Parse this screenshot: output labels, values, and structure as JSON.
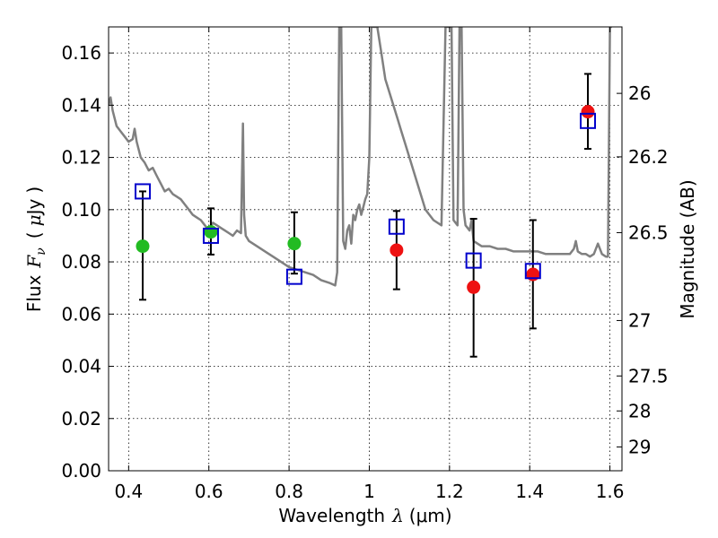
{
  "chart_data": {
    "type": "scatter",
    "xlabel_prefix": "Wavelength",
    "xlabel_symbol": "λ",
    "xlabel_unit": "(μm)",
    "ylabel_prefix": "Flux",
    "ylabel_symbol": "F",
    "ylabel_subscript": "ν",
    "ylabel_unit_open": "(",
    "ylabel_unit_mu": "μ",
    "ylabel_unit_rest": "Jy",
    "ylabel_unit_close": ")",
    "y2label": "Magnitude (AB)",
    "xlim": [
      0.35,
      1.63
    ],
    "ylim": [
      0.0,
      0.17
    ],
    "grid": true,
    "x_ticks": [
      {
        "value": 0.4,
        "label": "0.4"
      },
      {
        "value": 0.6,
        "label": "0.6"
      },
      {
        "value": 0.8,
        "label": "0.8"
      },
      {
        "value": 1.0,
        "label": "1"
      },
      {
        "value": 1.2,
        "label": "1.2"
      },
      {
        "value": 1.4,
        "label": "1.4"
      },
      {
        "value": 1.6,
        "label": "1.6"
      }
    ],
    "y_ticks": [
      {
        "value": 0.0,
        "label": "0.00"
      },
      {
        "value": 0.02,
        "label": "0.02"
      },
      {
        "value": 0.04,
        "label": "0.04"
      },
      {
        "value": 0.06,
        "label": "0.06"
      },
      {
        "value": 0.08,
        "label": "0.08"
      },
      {
        "value": 0.1,
        "label": "0.10"
      },
      {
        "value": 0.12,
        "label": "0.12"
      },
      {
        "value": 0.14,
        "label": "0.14"
      },
      {
        "value": 0.16,
        "label": "0.16"
      }
    ],
    "y2_ticks": [
      {
        "magnitude": 26,
        "label": "26"
      },
      {
        "magnitude": 26.2,
        "label": "26.2"
      },
      {
        "magnitude": 26.5,
        "label": "26.5"
      },
      {
        "magnitude": 27,
        "label": "27"
      },
      {
        "magnitude": 27.5,
        "label": "27.5"
      },
      {
        "magnitude": 28,
        "label": "28"
      },
      {
        "magnitude": 29,
        "label": "29"
      }
    ],
    "colors": {
      "spectrum": "#808080",
      "green_points": "#22bb22",
      "red_points": "#ee1111",
      "model_squares": "#0000cc",
      "error_bars": "#000000"
    },
    "spectrum": {
      "x": [
        0.35,
        0.355,
        0.36,
        0.37,
        0.38,
        0.39,
        0.4,
        0.41,
        0.415,
        0.42,
        0.43,
        0.44,
        0.45,
        0.46,
        0.47,
        0.48,
        0.49,
        0.5,
        0.51,
        0.52,
        0.53,
        0.54,
        0.55,
        0.56,
        0.57,
        0.58,
        0.59,
        0.6,
        0.61,
        0.62,
        0.63,
        0.64,
        0.65,
        0.66,
        0.67,
        0.68,
        0.685,
        0.688,
        0.692,
        0.7,
        0.72,
        0.74,
        0.76,
        0.78,
        0.8,
        0.82,
        0.84,
        0.86,
        0.88,
        0.9,
        0.915,
        0.92,
        0.925,
        0.928,
        0.93,
        0.935,
        0.94,
        0.945,
        0.95,
        0.955,
        0.96,
        0.965,
        0.97,
        0.975,
        0.98,
        0.985,
        0.99,
        0.995,
        1.0,
        1.005,
        1.01,
        1.02,
        1.03,
        1.04,
        1.05,
        1.06,
        1.07,
        1.08,
        1.09,
        1.1,
        1.12,
        1.14,
        1.16,
        1.18,
        1.19,
        1.195,
        1.2,
        1.205,
        1.21,
        1.22,
        1.225,
        1.228,
        1.23,
        1.235,
        1.24,
        1.245,
        1.25,
        1.255,
        1.26,
        1.27,
        1.28,
        1.3,
        1.32,
        1.34,
        1.36,
        1.38,
        1.4,
        1.42,
        1.44,
        1.46,
        1.48,
        1.5,
        1.51,
        1.515,
        1.52,
        1.53,
        1.54,
        1.55,
        1.56,
        1.57,
        1.58,
        1.59,
        1.595,
        1.6,
        1.605
      ],
      "y": [
        0.14,
        0.143,
        0.138,
        0.132,
        0.13,
        0.128,
        0.126,
        0.127,
        0.131,
        0.126,
        0.12,
        0.118,
        0.115,
        0.116,
        0.113,
        0.11,
        0.107,
        0.108,
        0.106,
        0.105,
        0.104,
        0.102,
        0.1,
        0.098,
        0.097,
        0.096,
        0.094,
        0.092,
        0.095,
        0.094,
        0.093,
        0.092,
        0.091,
        0.09,
        0.092,
        0.091,
        0.133,
        0.098,
        0.09,
        0.088,
        0.086,
        0.084,
        0.082,
        0.08,
        0.078,
        0.077,
        0.076,
        0.075,
        0.073,
        0.072,
        0.071,
        0.076,
        0.17,
        0.17,
        0.17,
        0.088,
        0.085,
        0.092,
        0.094,
        0.087,
        0.098,
        0.096,
        0.1,
        0.102,
        0.098,
        0.101,
        0.104,
        0.106,
        0.12,
        0.17,
        0.17,
        0.17,
        0.16,
        0.15,
        0.145,
        0.14,
        0.135,
        0.13,
        0.125,
        0.12,
        0.11,
        0.1,
        0.096,
        0.094,
        0.17,
        0.17,
        0.17,
        0.17,
        0.096,
        0.094,
        0.17,
        0.17,
        0.17,
        0.1,
        0.094,
        0.093,
        0.092,
        0.096,
        0.088,
        0.087,
        0.086,
        0.086,
        0.085,
        0.085,
        0.084,
        0.084,
        0.084,
        0.084,
        0.083,
        0.083,
        0.083,
        0.083,
        0.085,
        0.088,
        0.084,
        0.083,
        0.083,
        0.082,
        0.083,
        0.087,
        0.083,
        0.082,
        0.082,
        0.17,
        0.17
      ]
    },
    "series": [
      {
        "marker": "circle",
        "color": "green",
        "points": [
          {
            "x": 0.435,
            "y": 0.086,
            "yerr_low": 0.0655,
            "yerr_high": 0.107
          },
          {
            "x": 0.605,
            "y": 0.0915,
            "yerr_low": 0.0828,
            "yerr_high": 0.1005
          },
          {
            "x": 0.813,
            "y": 0.087,
            "yerr_low": 0.0755,
            "yerr_high": 0.099
          }
        ]
      },
      {
        "marker": "circle",
        "color": "red",
        "points": [
          {
            "x": 1.068,
            "y": 0.0845,
            "yerr_low": 0.0695,
            "yerr_high": 0.0995
          },
          {
            "x": 1.26,
            "y": 0.0703,
            "yerr_low": 0.0437,
            "yerr_high": 0.0965
          },
          {
            "x": 1.408,
            "y": 0.0752,
            "yerr_low": 0.0545,
            "yerr_high": 0.096
          },
          {
            "x": 1.545,
            "y": 0.1375,
            "yerr_low": 0.1233,
            "yerr_high": 0.152
          }
        ]
      },
      {
        "marker": "square",
        "color": "blue",
        "points": [
          {
            "x": 0.435,
            "y": 0.107
          },
          {
            "x": 0.605,
            "y": 0.09
          },
          {
            "x": 0.813,
            "y": 0.0743
          },
          {
            "x": 1.068,
            "y": 0.0935
          },
          {
            "x": 1.26,
            "y": 0.0805
          },
          {
            "x": 1.408,
            "y": 0.0765
          },
          {
            "x": 1.545,
            "y": 0.134
          }
        ]
      }
    ]
  }
}
